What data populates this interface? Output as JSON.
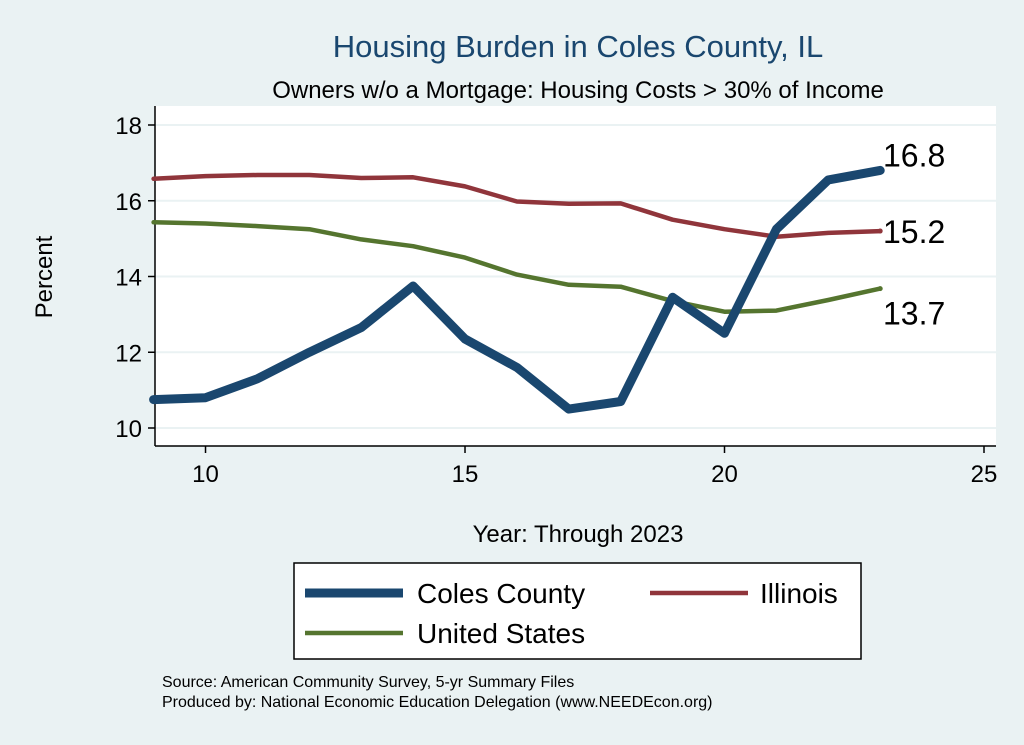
{
  "chart_data": {
    "type": "line",
    "title": "Housing Burden in Coles County, IL",
    "subtitle": "Owners w/o a Mortgage: Housing Costs > 30% of Income",
    "xlabel": "Year: Through 2023",
    "ylabel": "Percent",
    "xlim": [
      9,
      25.3
    ],
    "ylim": [
      9.7,
      18.3
    ],
    "xticks": [
      10,
      15,
      20,
      25
    ],
    "yticks": [
      10,
      12,
      14,
      16,
      18
    ],
    "x": [
      9,
      10,
      11,
      12,
      13,
      14,
      15,
      16,
      17,
      18,
      19,
      20,
      21,
      22,
      23
    ],
    "series": [
      {
        "name": "Coles County",
        "color": "#1a476f",
        "values": [
          10.75,
          10.8,
          11.3,
          12.0,
          12.65,
          13.75,
          12.35,
          11.6,
          10.5,
          10.7,
          13.45,
          12.5,
          15.25,
          16.55,
          16.8
        ],
        "end_label": "16.8"
      },
      {
        "name": "Illinois",
        "color": "#90353b",
        "values": [
          16.58,
          16.65,
          16.68,
          16.68,
          16.6,
          16.62,
          16.38,
          15.98,
          15.92,
          15.93,
          15.5,
          15.25,
          15.05,
          15.15,
          15.2
        ],
        "end_label": "15.2"
      },
      {
        "name": "United States",
        "color": "#55752f",
        "values": [
          15.43,
          15.4,
          15.33,
          15.25,
          14.98,
          14.8,
          14.5,
          14.05,
          13.78,
          13.73,
          13.35,
          13.07,
          13.1,
          13.38,
          13.68
        ],
        "end_label": "13.7"
      }
    ],
    "grid": true,
    "legend_position": "bottom"
  },
  "source_lines": [
    "Source: American Community Survey, 5-yr Summary Files",
    "Produced by: National Economic Education Delegation (www.NEEDEcon.org)"
  ]
}
